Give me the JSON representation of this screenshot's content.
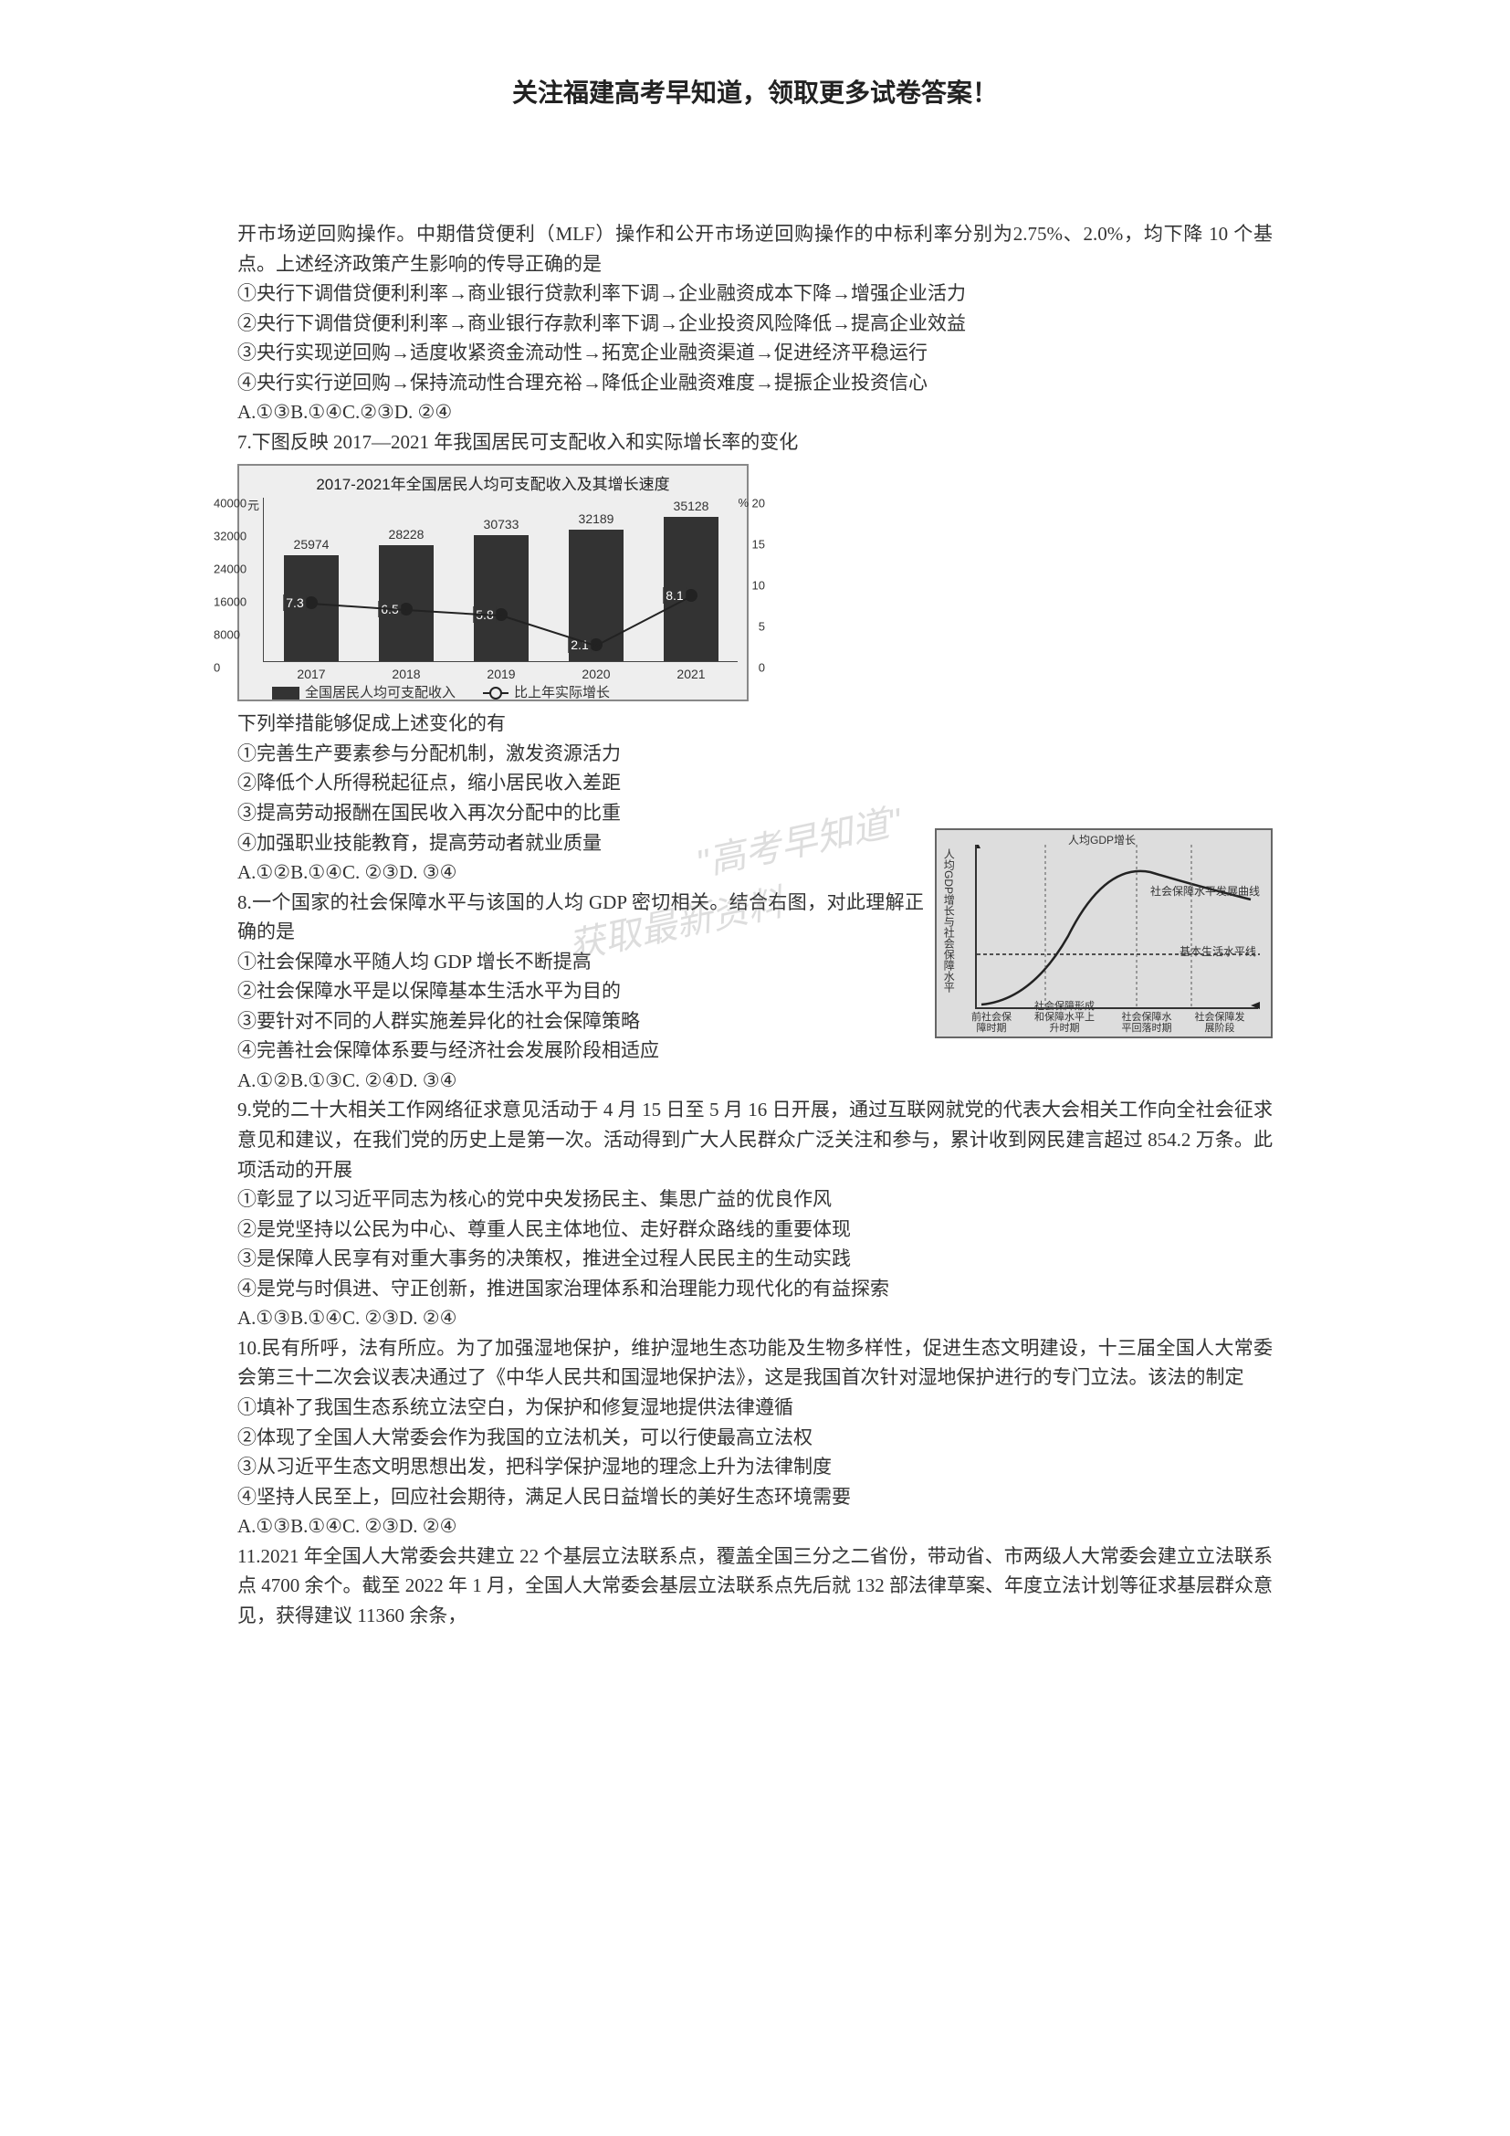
{
  "header": "关注福建高考早知道，领取更多试卷答案！",
  "q6": {
    "intro": "开市场逆回购操作。中期借贷便利（MLF）操作和公开市场逆回购操作的中标利率分别为2.75%、2.0%，均下降 10 个基点。上述经济政策产生影响的传导正确的是",
    "opt1": "①央行下调借贷便利利率→商业银行贷款利率下调→企业融资成本下降→增强企业活力",
    "opt2": "②央行下调借贷便利利率→商业银行存款利率下调→企业投资风险降低→提高企业效益",
    "opt3": "③央行实现逆回购→适度收紧资金流动性→拓宽企业融资渠道→促进经济平稳运行",
    "opt4": "④央行实行逆回购→保持流动性合理充裕→降低企业融资难度→提振企业投资信心",
    "choices": "A.①③B.①④C.②③D. ②④"
  },
  "q7": {
    "title": "7.下图反映 2017—2021 年我国居民可支配收入和实际增长率的变化",
    "chart": {
      "title": "2017-2021年全国居民人均可支配收入及其增长速度",
      "y_left_unit": "元",
      "y_right_unit": "%",
      "y_left_ticks": [
        "40000",
        "32000",
        "24000",
        "16000",
        "8000",
        "0"
      ],
      "y_right_ticks": [
        "20",
        "15",
        "10",
        "5",
        "0"
      ],
      "categories": [
        "2017",
        "2018",
        "2019",
        "2020",
        "2021"
      ],
      "bar_values": [
        25974,
        28228,
        30733,
        32189,
        35128
      ],
      "rate_values": [
        7.3,
        6.5,
        5.8,
        2.1,
        8.1
      ],
      "bar_color": "#333333",
      "bg_color": "#eeeeee",
      "legend_bar": "全国居民人均可支配收入",
      "legend_line": "比上年实际增长"
    },
    "after_chart": "下列举措能够促成上述变化的有",
    "opt1": "①完善生产要素参与分配机制，激发资源活力",
    "opt2": "②降低个人所得税起征点，缩小居民收入差距",
    "opt3": "③提高劳动报酬在国民收入再次分配中的比重",
    "opt4": "④加强职业技能教育，提高劳动者就业质量",
    "choices": "A.①②B.①④C. ②③D. ③④"
  },
  "q8": {
    "intro": "8.一个国家的社会保障水平与该国的人均 GDP 密切相关。结合右图，对此理解正确的是",
    "opt1": "①社会保障水平随人均 GDP 增长不断提高",
    "opt2": "②社会保障水平是以保障基本生活水平为目的",
    "opt3": "③要针对不同的人群实施差异化的社会保障策略",
    "opt4": "④完善社会保障体系要与经济社会发展阶段相适应",
    "choices": "A.①②B.①③C. ②④D. ③④",
    "curve": {
      "x_axis_label": "人均GDP增长",
      "y_axis_label": "人均GDP增长与社会保障水平",
      "annot_curve": "社会保障水平发展曲线",
      "annot_base": "基本生活水平线",
      "x_phase1": "前社会保障时期",
      "x_phase2": "社会保障形成和保障水平上升时期",
      "x_phase3": "社会保障水平回落时期",
      "x_phase4": "社会保障发展阶段"
    }
  },
  "q9": {
    "intro": "9.党的二十大相关工作网络征求意见活动于 4 月 15 日至 5 月 16 日开展，通过互联网就党的代表大会相关工作向全社会征求意见和建议，在我们党的历史上是第一次。活动得到广大人民群众广泛关注和参与，累计收到网民建言超过 854.2 万条。此项活动的开展",
    "opt1": "①彰显了以习近平同志为核心的党中央发扬民主、集思广益的优良作风",
    "opt2": "②是党坚持以公民为中心、尊重人民主体地位、走好群众路线的重要体现",
    "opt3": "③是保障人民享有对重大事务的决策权，推进全过程人民民主的生动实践",
    "opt4": "④是党与时俱进、守正创新，推进国家治理体系和治理能力现代化的有益探索",
    "choices": "A.①③B.①④C. ②③D. ②④"
  },
  "q10": {
    "intro": "10.民有所呼，法有所应。为了加强湿地保护，维护湿地生态功能及生物多样性，促进生态文明建设，十三届全国人大常委会第三十二次会议表决通过了《中华人民共和国湿地保护法》，这是我国首次针对湿地保护进行的专门立法。该法的制定",
    "opt1": "①填补了我国生态系统立法空白，为保护和修复湿地提供法律遵循",
    "opt2": "②体现了全国人大常委会作为我国的立法机关，可以行使最高立法权",
    "opt3": "③从习近平生态文明思想出发，把科学保护湿地的理念上升为法律制度",
    "opt4": "④坚持人民至上，回应社会期待，满足人民日益增长的美好生态环境需要",
    "choices": "A.①③B.①④C. ②③D. ②④"
  },
  "q11": {
    "intro": "11.2021 年全国人大常委会共建立 22 个基层立法联系点，覆盖全国三分之二省份，带动省、市两级人大常委会建立立法联系点 4700 余个。截至 2022 年 1 月，全国人大常委会基层立法联系点先后就 132 部法律草案、年度立法计划等征求基层群众意见，获得建议 11360 余条，"
  },
  "watermark1": "\"高考早知道\"",
  "watermark2": "获取最新资料"
}
